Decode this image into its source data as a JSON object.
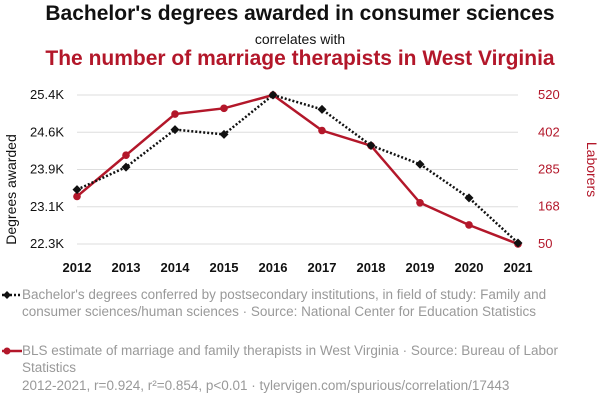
{
  "header": {
    "title": "Bachelor's degrees awarded in consumer sciences",
    "connector": "correlates with",
    "subtitle": "The number of marriage therapists in West Virginia"
  },
  "legend": {
    "series1_text": "Bachelor's degrees conferred by postsecondary institutions, in field of study: Family and consumer sciences/human sciences · Source: National Center for Education Statistics",
    "series2_text": "BLS estimate of marriage and family therapists in West Virginia · Source: Bureau of Labor Statistics"
  },
  "footer": {
    "text": "2012-2021, r=0.924, r²=0.854, p<0.01 · tylervigen.com/spurious/correlation/17443"
  },
  "colors": {
    "series1": "#111111",
    "series2": "#b3172a",
    "grid": "#dddddd",
    "muted_text": "#999999"
  },
  "chart_data": {
    "type": "line",
    "x": [
      2012,
      2013,
      2014,
      2015,
      2016,
      2017,
      2018,
      2019,
      2020,
      2021
    ],
    "ylabel_left": "Degrees awarded",
    "ylabel_right": "Laborers",
    "left_ticks": [
      {
        "label": "22.3K",
        "value": 22300
      },
      {
        "label": "23.1K",
        "value": 23075
      },
      {
        "label": "23.9K",
        "value": 23850
      },
      {
        "label": "24.6K",
        "value": 24625
      },
      {
        "label": "25.4K",
        "value": 25400
      }
    ],
    "right_ticks": [
      {
        "label": "50",
        "value": 50
      },
      {
        "label": "168",
        "value": 168
      },
      {
        "label": "285",
        "value": 285
      },
      {
        "label": "402",
        "value": 402
      },
      {
        "label": "520",
        "value": 520
      }
    ],
    "ylim_left": [
      22300,
      25400
    ],
    "ylim_right": [
      50,
      520
    ],
    "grid": true,
    "series": [
      {
        "axis": "left",
        "style": "dotted",
        "marker": "diamond",
        "values": [
          23430,
          23900,
          24680,
          24580,
          25400,
          25100,
          24350,
          23960,
          23260,
          22320
        ]
      },
      {
        "axis": "right",
        "style": "solid",
        "marker": "circle",
        "values": [
          200,
          330,
          460,
          478,
          520,
          408,
          360,
          180,
          110,
          50
        ]
      }
    ]
  }
}
